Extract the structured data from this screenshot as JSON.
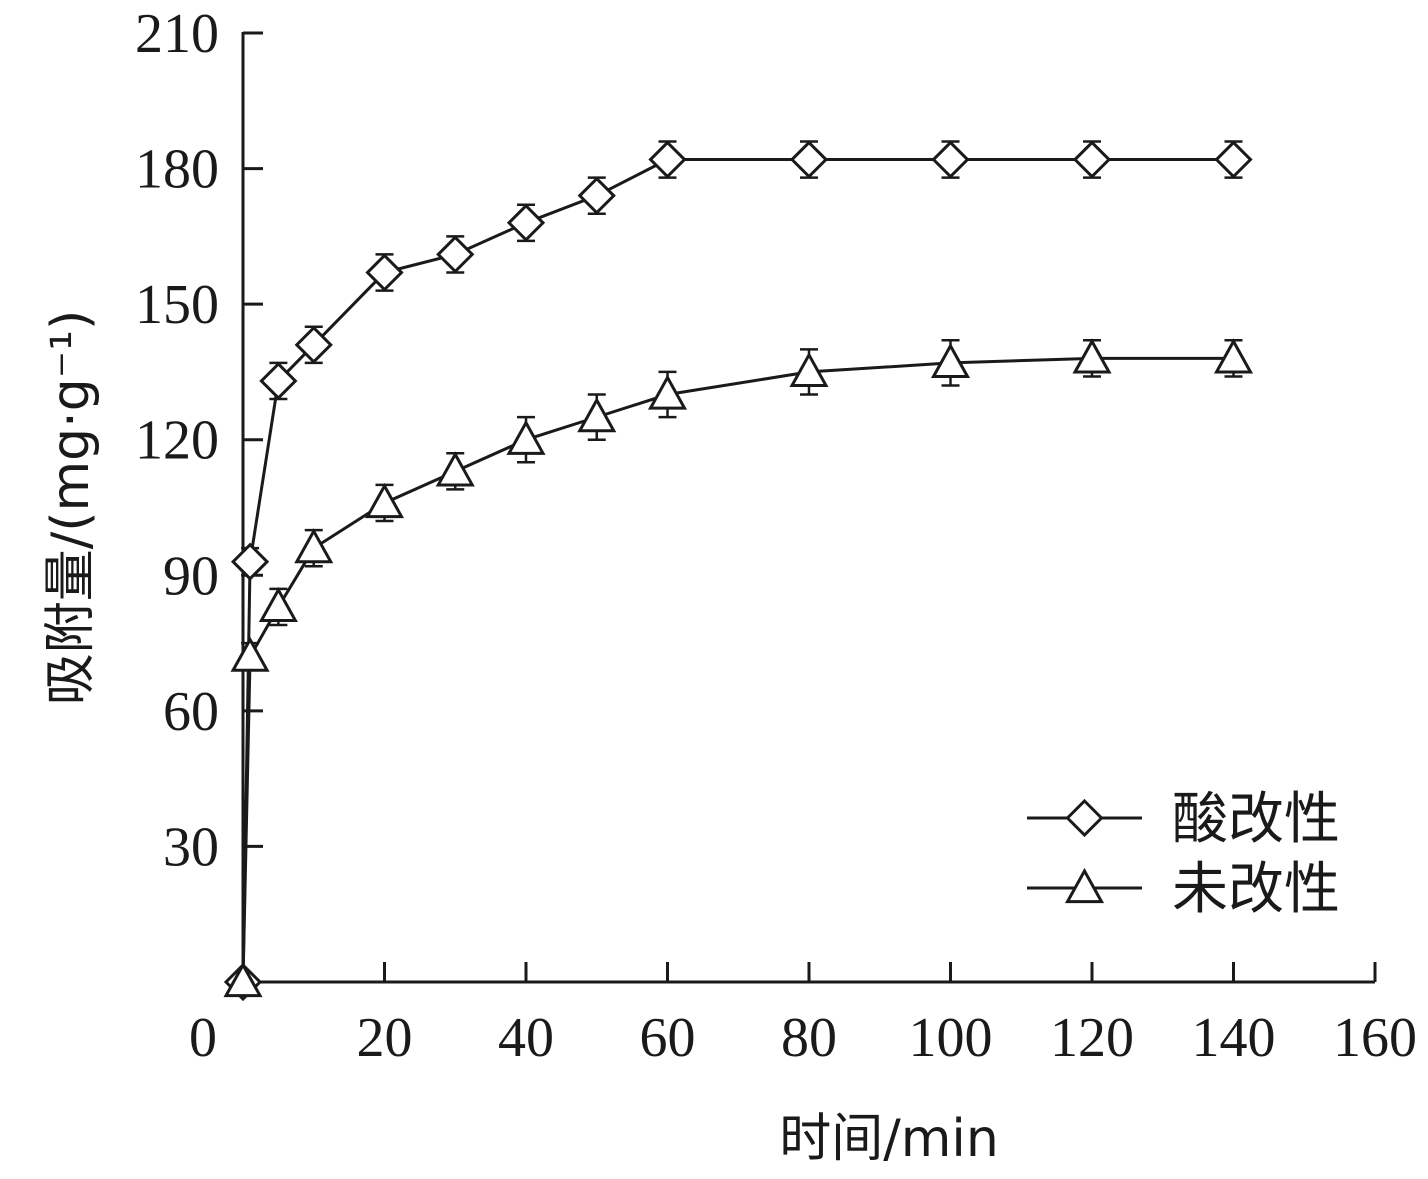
{
  "chart_data": {
    "type": "line",
    "xlabel": "时间/min",
    "ylabel": "吸附量/(mg·g⁻¹)",
    "xlim": [
      0,
      160
    ],
    "ylim": [
      0,
      210
    ],
    "x_ticks": [
      0,
      20,
      40,
      60,
      80,
      100,
      120,
      140,
      160
    ],
    "y_ticks": [
      30,
      60,
      90,
      120,
      150,
      180,
      210
    ],
    "grid": false,
    "legend": "bottom-right",
    "series": [
      {
        "name": "酸改性",
        "marker": "diamond",
        "points": [
          {
            "x": 0,
            "y": 0,
            "err": 0
          },
          {
            "x": 1,
            "y": 93,
            "err": 3
          },
          {
            "x": 5,
            "y": 133,
            "err": 4
          },
          {
            "x": 10,
            "y": 141,
            "err": 4
          },
          {
            "x": 20,
            "y": 157,
            "err": 4
          },
          {
            "x": 30,
            "y": 161,
            "err": 4
          },
          {
            "x": 40,
            "y": 168,
            "err": 4
          },
          {
            "x": 50,
            "y": 174,
            "err": 4
          },
          {
            "x": 60,
            "y": 182,
            "err": 4
          },
          {
            "x": 80,
            "y": 182,
            "err": 4
          },
          {
            "x": 100,
            "y": 182,
            "err": 4
          },
          {
            "x": 120,
            "y": 182,
            "err": 4
          },
          {
            "x": 140,
            "y": 182,
            "err": 4
          }
        ]
      },
      {
        "name": "未改性",
        "marker": "triangle",
        "points": [
          {
            "x": 0,
            "y": 0,
            "err": 0
          },
          {
            "x": 1,
            "y": 72,
            "err": 3
          },
          {
            "x": 5,
            "y": 83,
            "err": 4
          },
          {
            "x": 10,
            "y": 96,
            "err": 4
          },
          {
            "x": 20,
            "y": 106,
            "err": 4
          },
          {
            "x": 30,
            "y": 113,
            "err": 4
          },
          {
            "x": 40,
            "y": 120,
            "err": 5
          },
          {
            "x": 50,
            "y": 125,
            "err": 5
          },
          {
            "x": 60,
            "y": 130,
            "err": 5
          },
          {
            "x": 80,
            "y": 135,
            "err": 5
          },
          {
            "x": 100,
            "y": 137,
            "err": 5
          },
          {
            "x": 120,
            "y": 138,
            "err": 4
          },
          {
            "x": 140,
            "y": 138,
            "err": 4
          }
        ]
      }
    ]
  }
}
